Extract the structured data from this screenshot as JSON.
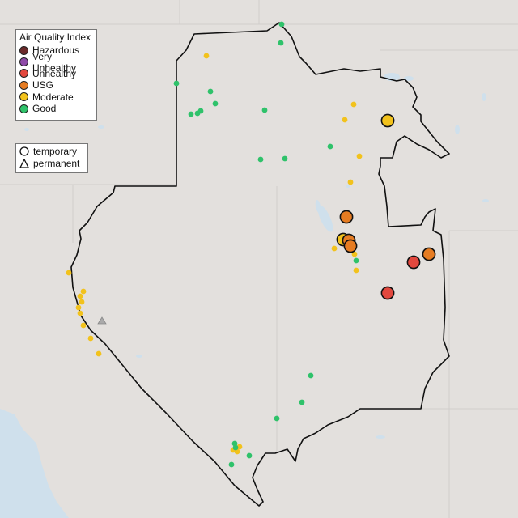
{
  "legend": {
    "title": "Air Quality Index",
    "categories": [
      {
        "label": "Hazardous",
        "color": "#6b2a2a"
      },
      {
        "label": "Very Unhealthy",
        "color": "#8e4aa8"
      },
      {
        "label": "Unhealthy",
        "color": "#e2483e"
      },
      {
        "label": "USG",
        "color": "#e67c22"
      },
      {
        "label": "Moderate",
        "color": "#f2c21c"
      },
      {
        "label": "Good",
        "color": "#2fc26a"
      }
    ],
    "monitor_types": [
      {
        "label": "temporary",
        "icon": "circle-outline-icon"
      },
      {
        "label": "permanent",
        "icon": "triangle-outline-icon"
      }
    ]
  },
  "colors": {
    "terrain": "#e6e4e1",
    "water": "#cfe0ec",
    "boundary": "#111111",
    "grid": "#d0cecb"
  }
}
